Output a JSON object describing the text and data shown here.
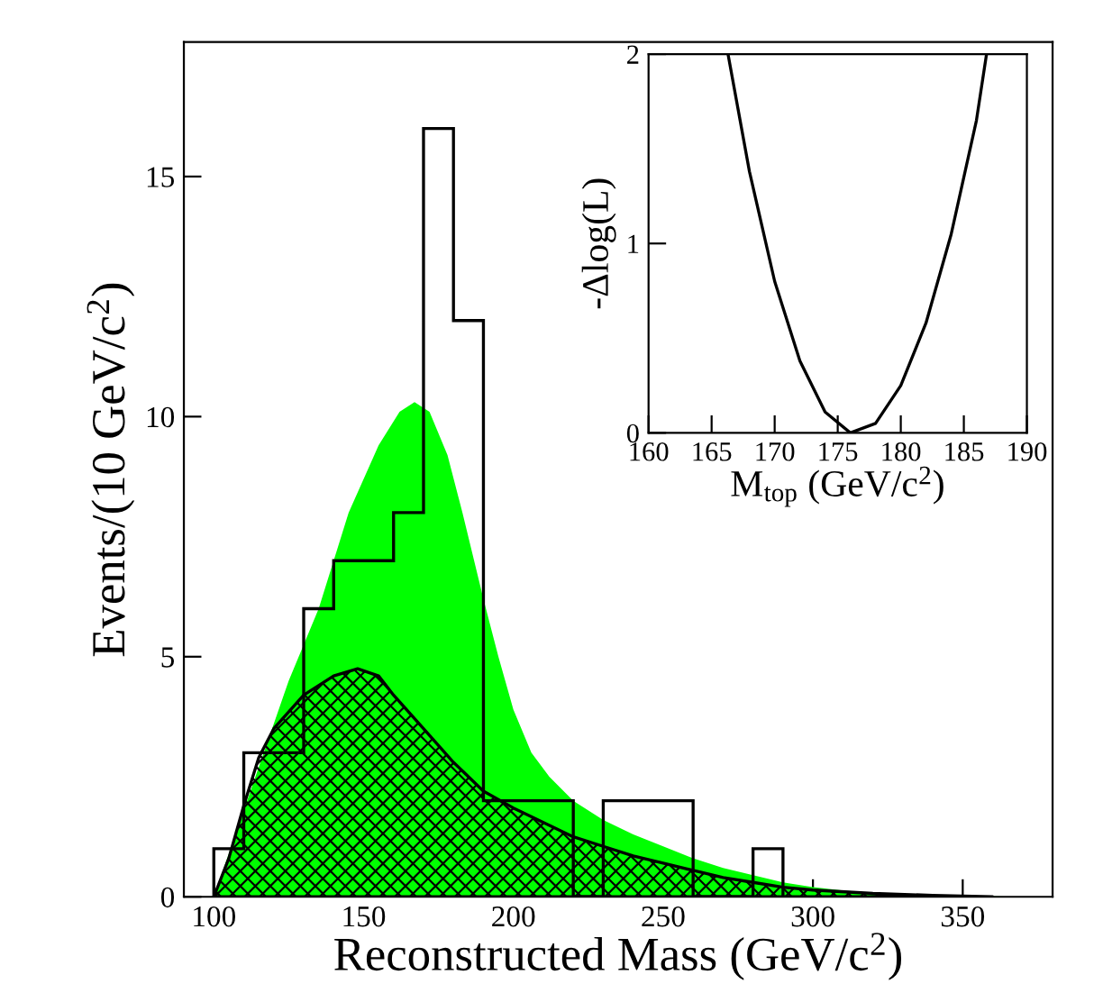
{
  "chart_data": [
    {
      "type": "histogram",
      "xlabel": "Reconstructed Mass (GeV/c$^{2}$)",
      "ylabel": "Events/(10 GeV/c$^{2}$)",
      "color": "#000000",
      "bins": [
        100,
        110,
        120,
        130,
        140,
        150,
        160,
        170,
        180,
        190,
        200,
        210,
        220,
        230,
        240,
        250,
        260,
        270,
        280,
        290
      ],
      "values": [
        1,
        3,
        3,
        6,
        7,
        7,
        8,
        16,
        12,
        2,
        2,
        2,
        0,
        2,
        2,
        2,
        0,
        0,
        1
      ],
      "series": [
        {
          "type": "area",
          "color": "#00ff00",
          "x": [
            100,
            125,
            135,
            145,
            155,
            162,
            167,
            172,
            178,
            183,
            190,
            195,
            200,
            206,
            212,
            220,
            230,
            240,
            250,
            260,
            270,
            280,
            290,
            300,
            310,
            320,
            340,
            360,
            368
          ],
          "values": [
            0,
            4.5,
            6,
            8,
            9.4,
            10.1,
            10.3,
            10.1,
            9.2,
            8,
            6.2,
            5,
            3.9,
            3,
            2.5,
            2,
            1.6,
            1.3,
            1.05,
            0.8,
            0.6,
            0.45,
            0.3,
            0.2,
            0.13,
            0.08,
            0.04,
            0.01,
            0
          ]
        },
        {
          "type": "area",
          "color": "#000000",
          "x": [
            100,
            105,
            110,
            115,
            120,
            130,
            140,
            148,
            155,
            160,
            170,
            180,
            190,
            200,
            210,
            220,
            230,
            240,
            250,
            260,
            270,
            280,
            290,
            300,
            320,
            340,
            360
          ],
          "values": [
            0,
            0.8,
            1.9,
            2.9,
            3.5,
            4.2,
            4.6,
            4.75,
            4.6,
            4.2,
            3.5,
            2.8,
            2.2,
            1.85,
            1.55,
            1.25,
            1.05,
            0.85,
            0.7,
            0.55,
            0.4,
            0.3,
            0.2,
            0.14,
            0.07,
            0.03,
            0
          ]
        }
      ],
      "xlim": [
        90,
        380
      ],
      "ylim": [
        0,
        17.8
      ],
      "xticks": [
        100,
        150,
        200,
        250,
        300,
        350
      ],
      "yticks": [
        0,
        5,
        10,
        15
      ],
      "grid": false,
      "legend": false
    },
    {
      "type": "line",
      "xlabel": "M$_{top}$ (GeV/c$^{2}$)",
      "ylabel": "-Δlog(L)",
      "color": "#000000",
      "x": [
        166.3,
        168,
        170,
        172,
        174,
        176,
        178,
        180,
        182,
        184,
        186,
        186.8
      ],
      "values": [
        2,
        1.38,
        0.8,
        0.38,
        0.11,
        0,
        0.05,
        0.25,
        0.58,
        1.05,
        1.65,
        2
      ],
      "xlim": [
        160,
        190
      ],
      "ylim": [
        0,
        2
      ],
      "xticks": [
        160,
        165,
        170,
        175,
        180,
        185,
        190
      ],
      "yticks": [
        0,
        1,
        2
      ],
      "grid": false,
      "legend": false
    }
  ]
}
